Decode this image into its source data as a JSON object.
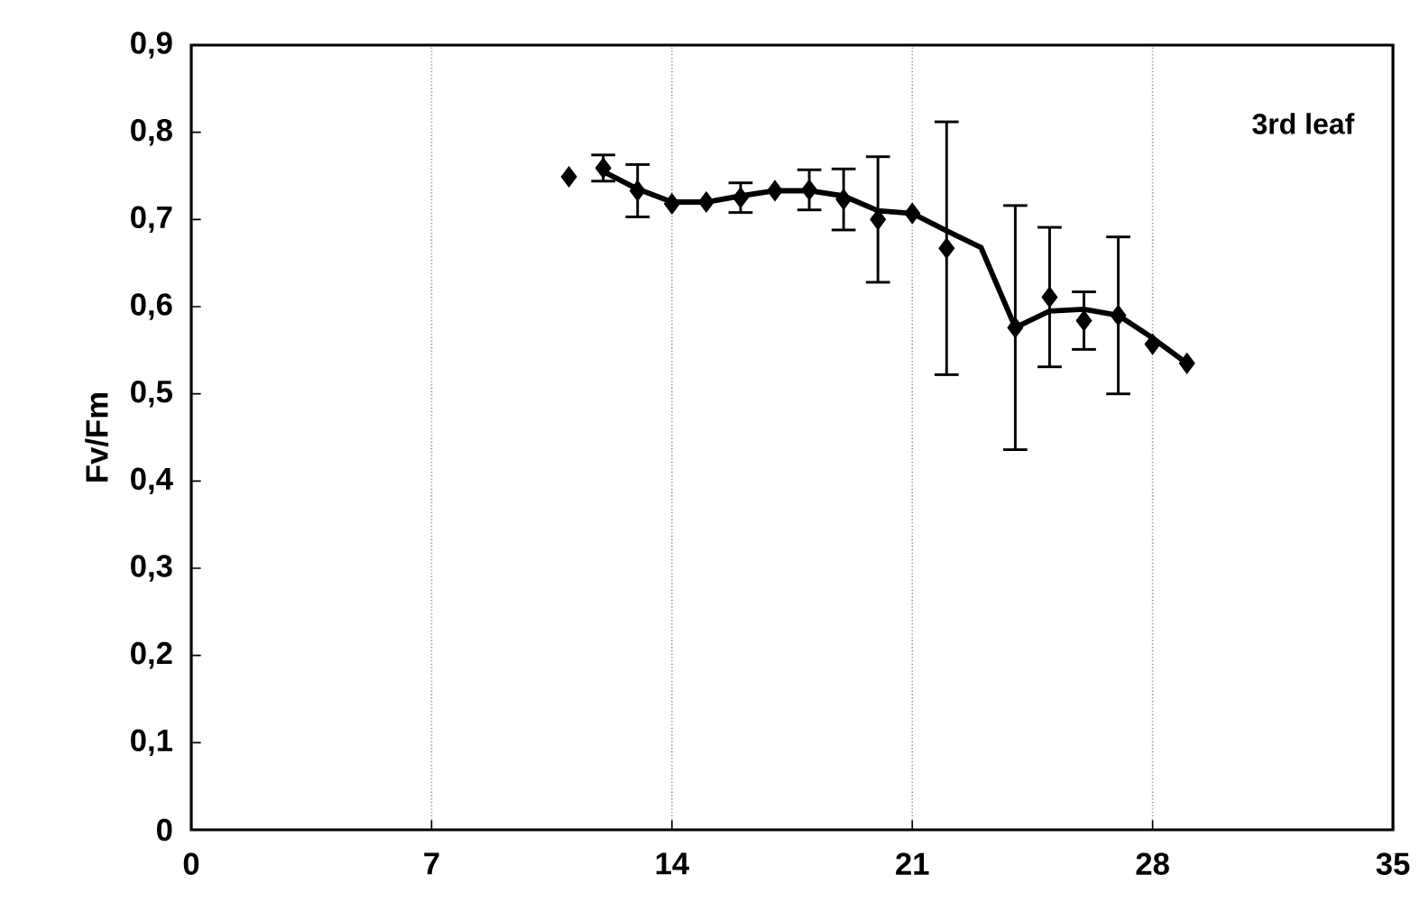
{
  "chart_data": {
    "type": "scatter",
    "ylabel": "Fv/Fm",
    "annotations": [
      "3rd leaf"
    ],
    "xlim": [
      0,
      35
    ],
    "xticks": [
      0,
      7,
      14,
      21,
      28,
      35
    ],
    "ylim": [
      0,
      0.9
    ],
    "yticks": [
      {
        "value": 0,
        "label": "0"
      },
      {
        "value": 0.1,
        "label": "0,1"
      },
      {
        "value": 0.2,
        "label": "0,2"
      },
      {
        "value": 0.3,
        "label": "0,3"
      },
      {
        "value": 0.4,
        "label": "0,4"
      },
      {
        "value": 0.5,
        "label": "0,5"
      },
      {
        "value": 0.6,
        "label": "0,6"
      },
      {
        "value": 0.7,
        "label": "0,7"
      },
      {
        "value": 0.8,
        "label": "0,8"
      },
      {
        "value": 0.9,
        "label": "0,9"
      }
    ],
    "grid": "x",
    "marker": "diamond",
    "series": [
      {
        "type": "line",
        "color": "#000000",
        "marker": "none",
        "line_style": "solid",
        "x": [
          12,
          13,
          14,
          15,
          16,
          17,
          18,
          19,
          20,
          21,
          22,
          23,
          24,
          25,
          26,
          27,
          28,
          29
        ],
        "values": [
          0.755,
          0.735,
          0.72,
          0.72,
          0.727,
          0.733,
          0.733,
          0.727,
          0.71,
          0.707,
          0.687,
          0.668,
          0.576,
          0.595,
          0.597,
          0.59,
          0.564,
          0.535
        ]
      },
      {
        "color": "#000000",
        "x": [
          11,
          12,
          13,
          14,
          15,
          16,
          17,
          18,
          19,
          20,
          21,
          22,
          24,
          25,
          26,
          27,
          28,
          29
        ],
        "values": [
          0.749,
          0.759,
          0.733,
          0.718,
          0.72,
          0.725,
          0.733,
          0.734,
          0.723,
          0.7,
          0.707,
          0.667,
          0.576,
          0.611,
          0.584,
          0.59,
          0.557,
          0.535
        ],
        "errors": [
          null,
          0.015,
          0.03,
          null,
          null,
          0.017,
          null,
          0.023,
          0.035,
          0.072,
          null,
          0.145,
          0.14,
          0.08,
          0.033,
          0.09,
          null,
          null
        ]
      }
    ]
  }
}
